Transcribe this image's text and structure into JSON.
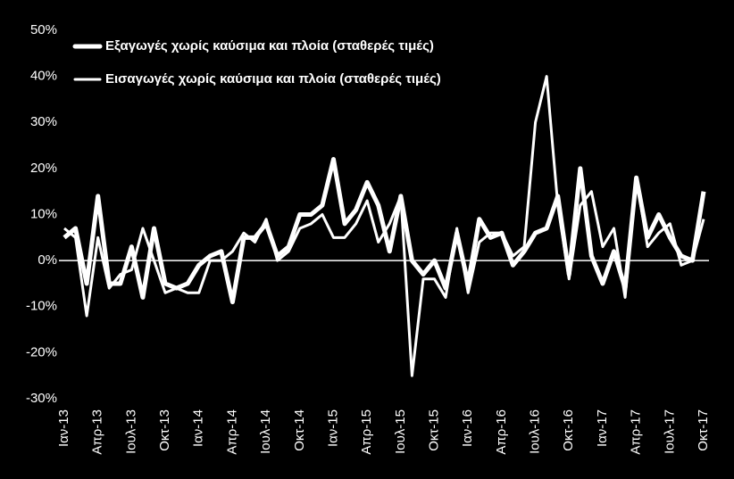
{
  "chart_data": {
    "type": "line",
    "categories": [
      "Ιαν-13",
      null,
      null,
      "Απρ-13",
      null,
      null,
      "Ιουλ-13",
      null,
      null,
      "Οκτ-13",
      null,
      null,
      "Ιαν-14",
      null,
      null,
      "Απρ-14",
      null,
      null,
      "Ιουλ-14",
      null,
      null,
      "Οκτ-14",
      null,
      null,
      "Ιαν-15",
      null,
      null,
      "Απρ-15",
      null,
      null,
      "Ιουλ-15",
      null,
      null,
      "Οκτ-15",
      null,
      null,
      "Ιαν-16",
      null,
      null,
      "Απρ-16",
      null,
      null,
      "Ιουλ-16",
      null,
      null,
      "Οκτ-16",
      null,
      null,
      "Ιαν-17",
      null,
      null,
      "Απρ-17",
      null,
      null,
      "Ιουλ-17",
      null,
      null,
      "Οκτ-17"
    ],
    "series": [
      {
        "name": "Εξαγωγές χωρίς καύσιμα και πλοία (σταθερές τιμές)",
        "color": "#ffffff",
        "values": [
          5,
          7,
          -5,
          14,
          -5,
          -5,
          3,
          -8,
          7,
          -5,
          -6,
          -5,
          -1,
          1,
          2,
          -9,
          5,
          5,
          8,
          1,
          3,
          10,
          10,
          12,
          22,
          8,
          11,
          17,
          12,
          2,
          14,
          0,
          -3,
          0,
          -6,
          6,
          -5,
          9,
          5,
          6,
          -1,
          2,
          6,
          7,
          14,
          -3,
          20,
          1,
          -5,
          2,
          -6,
          18,
          5,
          10,
          5,
          1,
          0,
          15
        ]
      },
      {
        "name": "Εισαγωγές χωρίς καύσιμα και πλοία (σταθερές τιμές)",
        "color": "#ffffff",
        "values": [
          7,
          5,
          -12,
          5,
          -6,
          -3,
          -2,
          7,
          0,
          -7,
          -6,
          -7,
          -7,
          0,
          0,
          2,
          6,
          4,
          9,
          0,
          2,
          7,
          8,
          10,
          5,
          5,
          8,
          13,
          4,
          8,
          14,
          -25,
          -4,
          -4,
          -8,
          7,
          -7,
          4,
          6,
          6,
          1,
          3,
          30,
          40,
          12,
          -4,
          12,
          15,
          3,
          7,
          -8,
          18,
          3,
          6,
          8,
          -1,
          0,
          9
        ]
      }
    ],
    "ylim": [
      -30,
      50
    ],
    "yticks": [
      {
        "value": -30,
        "label": "-30%"
      },
      {
        "value": -20,
        "label": "-20%"
      },
      {
        "value": -10,
        "label": "-10%"
      },
      {
        "value": 0,
        "label": "0%"
      },
      {
        "value": 10,
        "label": "10%"
      },
      {
        "value": 20,
        "label": "20%"
      },
      {
        "value": 30,
        "label": "30%"
      },
      {
        "value": 40,
        "label": "40%"
      },
      {
        "value": 50,
        "label": "50%"
      }
    ]
  }
}
